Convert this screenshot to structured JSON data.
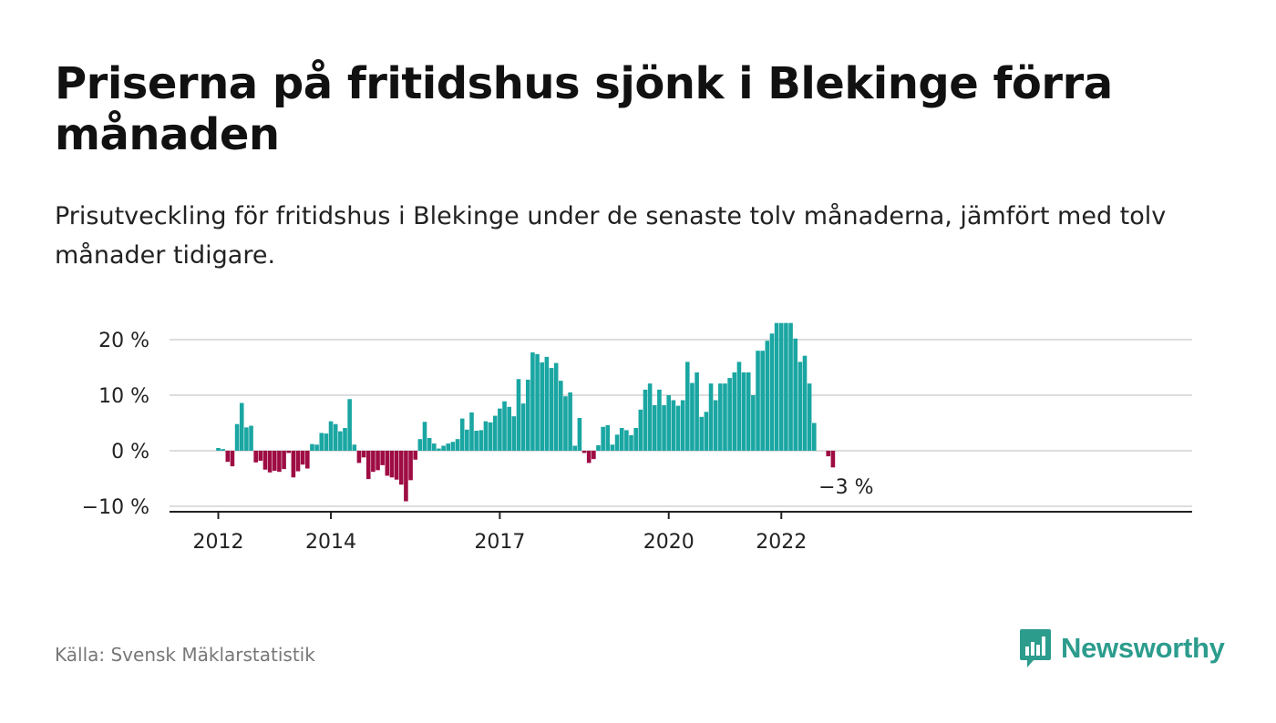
{
  "title": "Priserna på fritidshus sjönk i Blekinge förra månaden",
  "subtitle": "Prisutveckling för fritidshus i Blekinge under de senaste tolv månaderna, jämfört med tolv månader tidigare.",
  "source": "Källa: Svensk Mäklarstatistik",
  "brand": {
    "name": "Newsworthy",
    "icon": "newsworthy-logo-icon",
    "color": "#2c9c8d"
  },
  "colors": {
    "positive": "#1aa6a2",
    "negative": "#9e0c43",
    "grid": "#dddddd",
    "axis": "#222222"
  },
  "chart_data": {
    "type": "bar",
    "title": "",
    "xlabel": "",
    "ylabel": "",
    "unit": "%",
    "ylim": [
      -10.5,
      23
    ],
    "yticks": [
      20,
      10,
      0,
      -10
    ],
    "ytick_labels": [
      "20 %",
      "10 %",
      "0 %",
      "−10 %"
    ],
    "xticks": [
      {
        "label": "2012",
        "date": "2012-01"
      },
      {
        "label": "2014",
        "date": "2014-01"
      },
      {
        "label": "2017",
        "date": "2017-01"
      },
      {
        "label": "2020",
        "date": "2020-01"
      },
      {
        "label": "2022",
        "date": "2022-01"
      }
    ],
    "grid": true,
    "annotation": {
      "text": "−3 %",
      "date": "2023-02",
      "value": -3
    },
    "series": [
      {
        "start": "2011-07",
        "values": [
          null,
          null,
          null,
          null,
          null,
          null,
          0.5,
          0.3,
          -2,
          -2.8,
          4.8,
          8.6,
          4.2,
          4.5,
          -2.1,
          -1.8,
          -3.4,
          -3.9,
          -3.6,
          -3.8,
          -3.3,
          -0.4,
          -4.8,
          -3.7,
          -2.5,
          -3.2,
          1.2,
          1.1,
          3.2,
          3.1,
          5.3,
          4.8,
          3.5,
          4.1,
          9.3,
          1.1,
          -2.2,
          -1.2,
          -5.1,
          -3.8,
          -3.5,
          -2.6,
          -4.5,
          -4.8,
          -5.2,
          -6.1,
          -9.1,
          -5.3,
          -1.6,
          2.1,
          5.2,
          2.3,
          1.3,
          0.4,
          0.9,
          1.3,
          1.6,
          2.1,
          5.8,
          3.8,
          6.9,
          3.6,
          3.7,
          5.3,
          5.1,
          6.3,
          7.6,
          8.9,
          7.9,
          6.2,
          12.9,
          8.5,
          12.8,
          17.7,
          17.4,
          15.9,
          16.9,
          14.9,
          15.8,
          12.6,
          9.8,
          10.5,
          0.9,
          5.9,
          -0.4,
          -2.2,
          -1.5,
          1,
          4.3,
          4.6,
          1.1,
          2.9,
          4.1,
          3.7,
          2.8,
          4.1,
          7.4,
          11,
          12.1,
          8.2,
          11,
          8.2,
          10,
          9.1,
          8.1,
          9.1,
          16,
          12.2,
          14.1,
          6.1,
          7,
          12.1,
          9.1,
          12.1,
          12.1,
          13.1,
          14.1,
          16,
          14.1,
          14.1,
          10,
          18,
          18,
          19.8,
          21.1,
          23,
          23,
          23,
          23,
          20.2,
          16,
          17.1,
          12.1,
          5,
          null,
          null,
          -1,
          -3
        ]
      }
    ]
  }
}
